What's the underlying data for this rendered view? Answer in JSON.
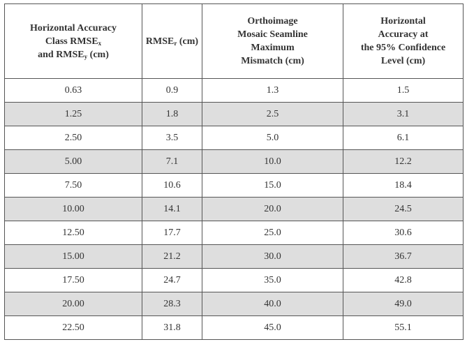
{
  "table": {
    "headers": [
      {
        "lines": [
          "Horizontal Accuracy",
          "Class RMSE",
          "and RMSE",
          " (cm)"
        ],
        "subs": [
          "x",
          "y"
        ]
      },
      {
        "lines": [
          "RMSE",
          " (cm)"
        ],
        "subs": [
          "r"
        ]
      },
      {
        "lines": [
          "Orthoimage",
          "Mosaic Seamline",
          "Maximum",
          "Mismatch (cm)"
        ]
      },
      {
        "lines": [
          "Horizontal",
          "Accuracy at",
          "the 95% Confidence",
          "Level (cm)"
        ]
      }
    ],
    "rows": [
      [
        "0.63",
        "0.9",
        "1.3",
        "1.5"
      ],
      [
        "1.25",
        "1.8",
        "2.5",
        "3.1"
      ],
      [
        "2.50",
        "3.5",
        "5.0",
        "6.1"
      ],
      [
        "5.00",
        "7.1",
        "10.0",
        "12.2"
      ],
      [
        "7.50",
        "10.6",
        "15.0",
        "18.4"
      ],
      [
        "10.00",
        "14.1",
        "20.0",
        "24.5"
      ],
      [
        "12.50",
        "17.7",
        "25.0",
        "30.6"
      ],
      [
        "15.00",
        "21.2",
        "30.0",
        "36.7"
      ],
      [
        "17.50",
        "24.7",
        "35.0",
        "42.8"
      ],
      [
        "20.00",
        "28.3",
        "40.0",
        "49.0"
      ],
      [
        "22.50",
        "31.8",
        "45.0",
        "55.1"
      ]
    ]
  },
  "colors": {
    "row_shade": "#dedede",
    "border": "#555555",
    "text": "#333333"
  }
}
